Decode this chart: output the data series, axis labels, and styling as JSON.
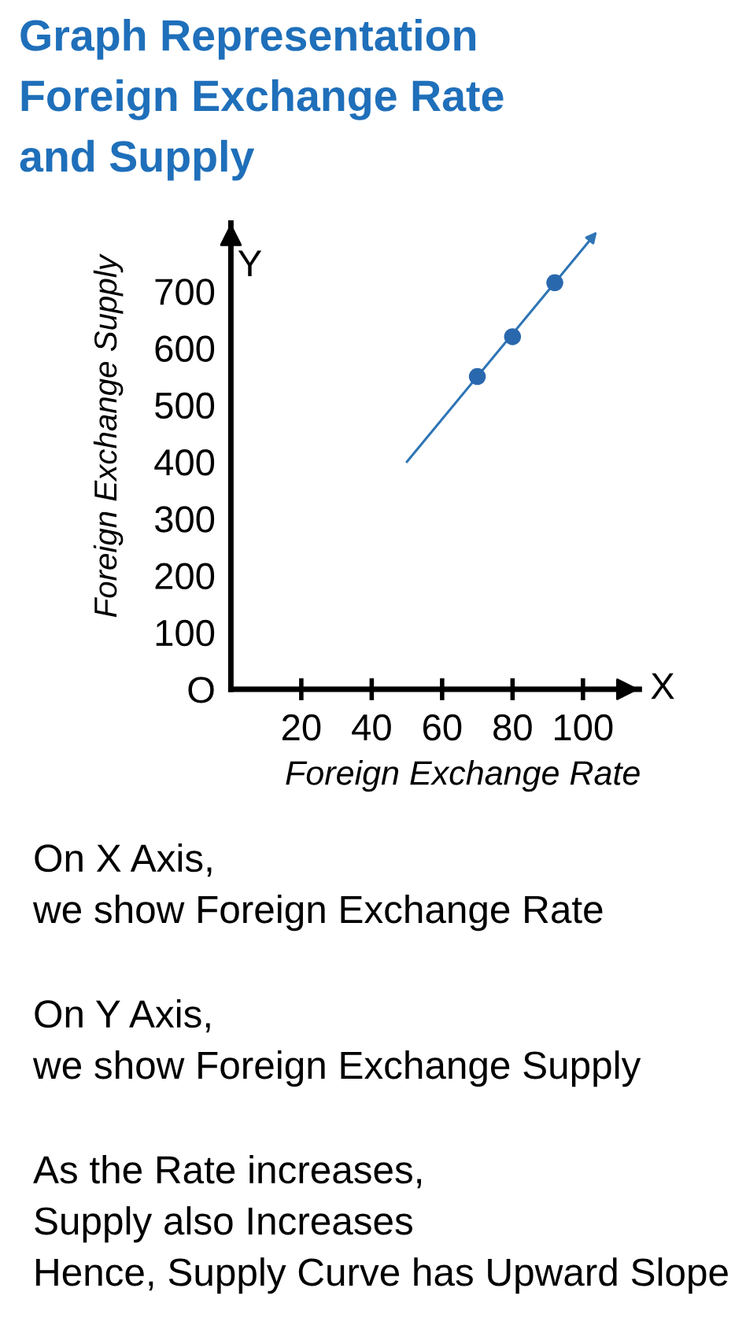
{
  "chart_data": {
    "type": "scatter",
    "title": "Graph Representation\nForeign Exchange Rate\nand Supply",
    "xlabel": "Foreign Exchange Rate",
    "ylabel": "Foreign Exchange Supply",
    "series": [
      {
        "color": "#2a68ae",
        "marker": "circle",
        "x": [
          70,
          80,
          92
        ],
        "values": [
          550,
          620,
          715
        ]
      }
    ],
    "xlim": [
      0,
      116
    ],
    "xticks": [
      20,
      40,
      60,
      80,
      100
    ],
    "ylim": [
      0,
      820
    ],
    "yticks": [
      {
        "value": 0,
        "label": "O"
      },
      100,
      200,
      300,
      400,
      500,
      600,
      700
    ],
    "annotations": [
      "X",
      "Y",
      "On X Axis,\nwe show Foreign Exchange Rate",
      "On Y Axis,\nwe show Foreign Exchange Supply",
      "As the Rate increases,\nSupply also Increases\nHence, Supply Curve has Upward Slope"
    ]
  }
}
